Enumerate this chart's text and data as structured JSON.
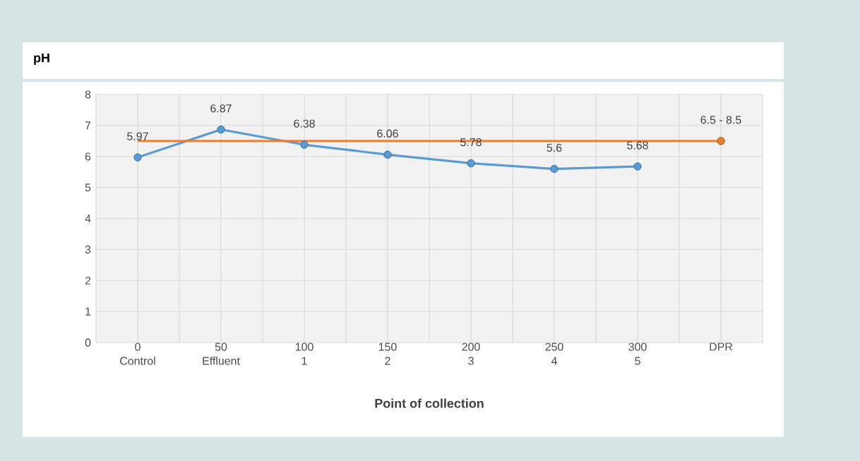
{
  "chart_data": {
    "type": "line",
    "title": "pH",
    "xlabel": "Point of collection",
    "categories": [
      "0 Control",
      "50 Effluent",
      "100 1",
      "150 2",
      "200 3",
      "250 4",
      "300 5",
      "DPR"
    ],
    "series": [
      {
        "color": "#5b9bd5",
        "marker": "circle",
        "values": [
          5.97,
          6.87,
          6.38,
          6.06,
          5.78,
          5.6,
          5.68,
          null
        ],
        "value_labels": [
          "5.97",
          "6.87",
          "6.38",
          "6.06",
          "5.78",
          "5.6",
          "5.68",
          null
        ]
      },
      {
        "color": "#ed7d31",
        "marker": "none",
        "values": [
          6.5,
          6.5,
          6.5,
          6.5,
          6.5,
          6.5,
          6.5,
          6.5
        ]
      },
      {
        "type": "scatter",
        "color": "#ed7d31",
        "marker": "circle",
        "values": [
          null,
          null,
          null,
          null,
          null,
          null,
          null,
          6.5
        ],
        "value_labels": [
          null,
          null,
          null,
          null,
          null,
          null,
          null,
          "6.5 - 8.5"
        ]
      }
    ],
    "ylim": [
      0,
      8
    ],
    "yticks": [
      0,
      1,
      2,
      3,
      4,
      5,
      6,
      7,
      8
    ],
    "grid": true
  }
}
